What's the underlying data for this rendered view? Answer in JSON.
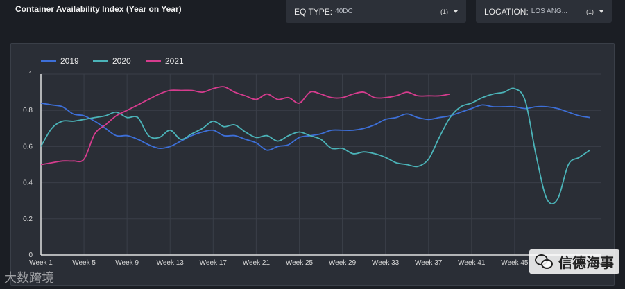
{
  "page": {
    "title": "Container Availability Index (Year on Year)"
  },
  "filters": {
    "eq_type": {
      "label": "EQ TYPE:",
      "value": "40DC",
      "count": "(1)"
    },
    "location": {
      "label": "LOCATION:",
      "value": "LOS ANG...",
      "count": "(1)"
    }
  },
  "watermarks": {
    "left": "大数跨境",
    "right": "信德海事"
  },
  "colors": {
    "2019": "#3d6fd8",
    "2020": "#4bb3b8",
    "2021": "#d63c8e"
  },
  "chart_data": {
    "type": "line",
    "title": "",
    "xlabel": "",
    "ylabel": "",
    "ylim": [
      0,
      1
    ],
    "yticks": [
      "0",
      "0.2",
      "0.4",
      "0.6",
      "0.8",
      "1"
    ],
    "xrange": [
      1,
      53
    ],
    "xticks": [
      {
        "week": 1,
        "label": "Week 1"
      },
      {
        "week": 5,
        "label": "Week 5"
      },
      {
        "week": 9,
        "label": "Week 9"
      },
      {
        "week": 13,
        "label": "Week 13"
      },
      {
        "week": 17,
        "label": "Week 17"
      },
      {
        "week": 21,
        "label": "Week 21"
      },
      {
        "week": 25,
        "label": "Week 25"
      },
      {
        "week": 29,
        "label": "Week 29"
      },
      {
        "week": 33,
        "label": "Week 33"
      },
      {
        "week": 37,
        "label": "Week 37"
      },
      {
        "week": 41,
        "label": "Week 41"
      },
      {
        "week": 45,
        "label": "Week 45"
      }
    ],
    "legend_position": "top-left",
    "series": [
      {
        "name": "2019",
        "x": [
          1,
          2,
          3,
          4,
          5,
          6,
          7,
          8,
          9,
          10,
          11,
          12,
          13,
          14,
          15,
          16,
          17,
          18,
          19,
          20,
          21,
          22,
          23,
          24,
          25,
          26,
          27,
          28,
          29,
          30,
          31,
          32,
          33,
          34,
          35,
          36,
          37,
          38,
          39,
          40,
          41,
          42,
          43,
          44,
          45,
          46,
          47,
          48,
          49,
          50,
          51,
          52
        ],
        "values": [
          0.84,
          0.83,
          0.82,
          0.78,
          0.77,
          0.74,
          0.7,
          0.66,
          0.66,
          0.64,
          0.61,
          0.59,
          0.6,
          0.63,
          0.66,
          0.68,
          0.69,
          0.66,
          0.66,
          0.64,
          0.62,
          0.58,
          0.6,
          0.61,
          0.65,
          0.66,
          0.67,
          0.69,
          0.69,
          0.69,
          0.7,
          0.72,
          0.75,
          0.76,
          0.78,
          0.76,
          0.75,
          0.76,
          0.77,
          0.79,
          0.81,
          0.83,
          0.82,
          0.82,
          0.82,
          0.81,
          0.82,
          0.82,
          0.81,
          0.79,
          0.77,
          0.76
        ]
      },
      {
        "name": "2020",
        "x": [
          1,
          2,
          3,
          4,
          5,
          6,
          7,
          8,
          9,
          10,
          11,
          12,
          13,
          14,
          15,
          16,
          17,
          18,
          19,
          20,
          21,
          22,
          23,
          24,
          25,
          26,
          27,
          28,
          29,
          30,
          31,
          32,
          33,
          34,
          35,
          36,
          37,
          38,
          39,
          40,
          41,
          42,
          43,
          44,
          45,
          46,
          47,
          48,
          49,
          50,
          51,
          52
        ],
        "values": [
          0.6,
          0.7,
          0.74,
          0.74,
          0.75,
          0.76,
          0.77,
          0.79,
          0.76,
          0.76,
          0.66,
          0.65,
          0.69,
          0.64,
          0.67,
          0.7,
          0.74,
          0.71,
          0.72,
          0.68,
          0.65,
          0.66,
          0.63,
          0.66,
          0.68,
          0.66,
          0.64,
          0.59,
          0.59,
          0.56,
          0.57,
          0.56,
          0.54,
          0.51,
          0.5,
          0.49,
          0.53,
          0.65,
          0.76,
          0.82,
          0.84,
          0.87,
          0.89,
          0.9,
          0.92,
          0.85,
          0.55,
          0.31,
          0.31,
          0.5,
          0.54,
          0.58
        ]
      },
      {
        "name": "2021",
        "x": [
          1,
          2,
          3,
          4,
          5,
          6,
          7,
          8,
          9,
          10,
          11,
          12,
          13,
          14,
          15,
          16,
          17,
          18,
          19,
          20,
          21,
          22,
          23,
          24,
          25,
          26,
          27,
          28,
          29,
          30,
          31,
          32,
          33,
          34,
          35,
          36,
          37,
          38,
          39
        ],
        "values": [
          0.5,
          0.51,
          0.52,
          0.52,
          0.53,
          0.67,
          0.72,
          0.77,
          0.8,
          0.83,
          0.86,
          0.89,
          0.91,
          0.91,
          0.91,
          0.9,
          0.92,
          0.93,
          0.9,
          0.88,
          0.86,
          0.89,
          0.86,
          0.87,
          0.84,
          0.9,
          0.89,
          0.87,
          0.87,
          0.89,
          0.9,
          0.87,
          0.87,
          0.88,
          0.9,
          0.88,
          0.88,
          0.88,
          0.89
        ]
      }
    ]
  }
}
